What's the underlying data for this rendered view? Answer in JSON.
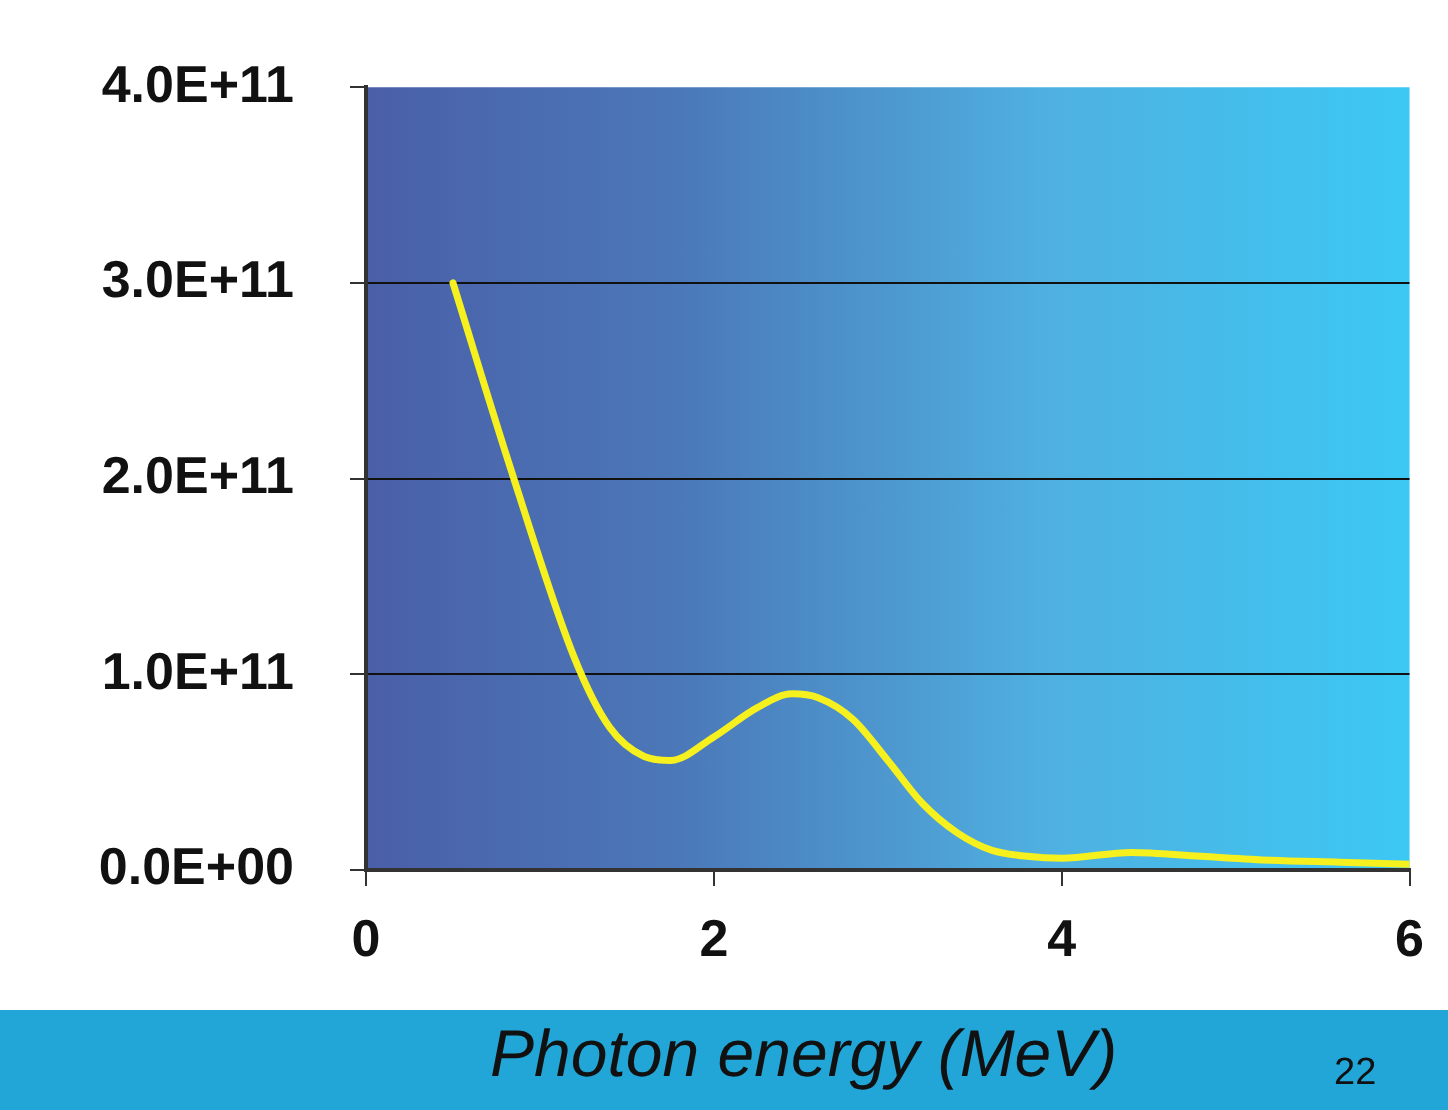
{
  "chart_data": {
    "type": "line",
    "xlabel": "Photon energy (MeV)",
    "annotations": [
      "22"
    ],
    "x": [
      0.5,
      0.85,
      1.2,
      1.4,
      1.6,
      1.75,
      2.0,
      2.25,
      2.45,
      2.6,
      2.8,
      3.0,
      3.2,
      3.4,
      3.6,
      3.8,
      4.0,
      4.4,
      4.8,
      5.2,
      5.6,
      6.0
    ],
    "series": [
      {
        "color": "#f5f01e",
        "values": [
          300000000000.0,
          200000000000.0,
          108000000000.0,
          73000000000.0,
          58000000000.0,
          56000000000.0,
          68000000000.0,
          83000000000.0,
          90000000000.0,
          88000000000.0,
          77000000000.0,
          56000000000.0,
          34000000000.0,
          19000000000.0,
          10000000000.0,
          7000000000.0,
          6000000000.0,
          9000000000.0,
          7000000000.0,
          5000000000.0,
          4000000000.0,
          3000000000.0
        ]
      }
    ],
    "xlim": [
      0,
      6
    ],
    "xticks": [
      0,
      2,
      4,
      6
    ],
    "ylim": [
      0,
      400000000000.0
    ],
    "yticks": [
      {
        "value": 0,
        "label": "0.0E+00"
      },
      {
        "value": 100000000000.0,
        "label": "1.0E+11"
      },
      {
        "value": 200000000000.0,
        "label": "2.0E+11"
      },
      {
        "value": 300000000000.0,
        "label": "3.0E+11"
      },
      {
        "value": 400000000000.0,
        "label": "4.0E+11"
      }
    ],
    "grid": "y",
    "legend": false,
    "marker": "none",
    "line_style": "solid"
  }
}
